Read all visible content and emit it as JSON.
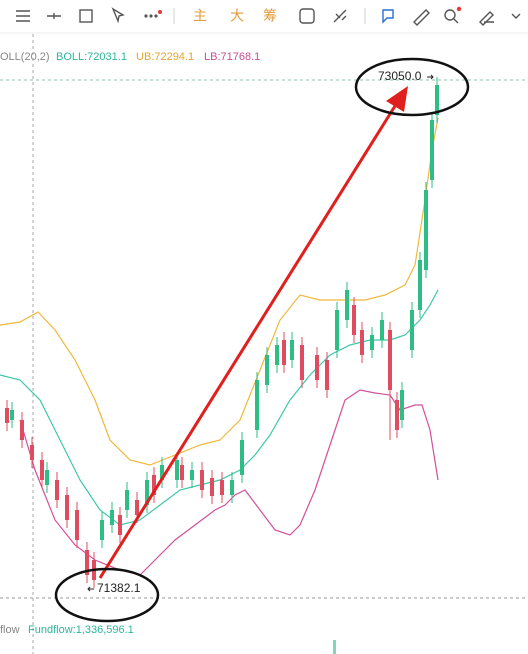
{
  "toolbar": {
    "buttons": [
      "主",
      "大",
      "筹"
    ]
  },
  "legend": {
    "indicator": "OLL(20,2)",
    "boll": "BOLL:72031.1",
    "ub": "UB:72294.1",
    "lb": "LB:71768.1"
  },
  "annotations": {
    "high": "73050.0",
    "low": "71382.1"
  },
  "footer": {
    "left": "flow",
    "fundflow": "Fundflow:1,336,596.1"
  }
}
